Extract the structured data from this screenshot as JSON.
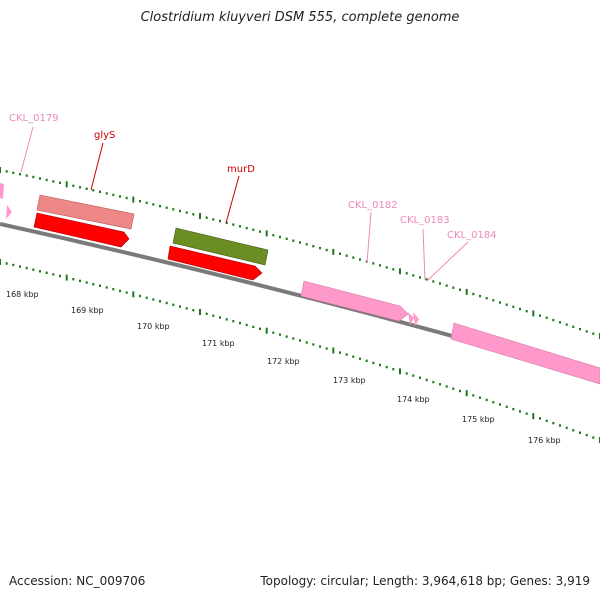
{
  "title": "Clostridium kluyveri DSM 555, complete genome",
  "footer": {
    "accession": "Accession: NC_009706",
    "summary": "Topology: circular; Length: 3,964,618 bp; Genes: 3,919"
  },
  "colors": {
    "tick": "#1a7a1a",
    "backbone": "#7a7a7a",
    "gene_pink": "#ff99cc",
    "gene_salmon": "#ee8888",
    "gene_red": "#ff0000",
    "gene_olive": "#6b8e23",
    "label_pink": "#ee88bb",
    "label_red": "#cc0000"
  },
  "genes": [
    {
      "name": "CKL_0179",
      "color": "label_pink"
    },
    {
      "name": "glyS",
      "color": "label_red"
    },
    {
      "name": "murD",
      "color": "label_red"
    },
    {
      "name": "CKL_0182",
      "color": "label_pink"
    },
    {
      "name": "CKL_0183",
      "color": "label_pink"
    },
    {
      "name": "CKL_0184",
      "color": "label_pink"
    }
  ],
  "kbp_labels": [
    "168 kbp",
    "169 kbp",
    "170 kbp",
    "171 kbp",
    "172 kbp",
    "173 kbp",
    "174 kbp",
    "175 kbp",
    "176 kbp"
  ]
}
